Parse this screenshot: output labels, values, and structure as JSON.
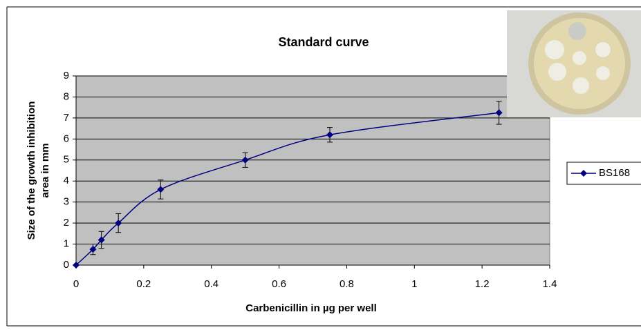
{
  "chart_data": {
    "type": "line",
    "title": "Standard curve",
    "xlabel": "Carbenicillin in µg per well",
    "ylabel": [
      "Size of the growth inhibition",
      "area in mm"
    ],
    "x": [
      0,
      0.05,
      0.075,
      0.125,
      0.25,
      0.5,
      0.75,
      1.25
    ],
    "series": [
      {
        "name": "BS168",
        "color": "#000080",
        "values": [
          0,
          0.75,
          1.2,
          2.0,
          3.6,
          5.0,
          6.2,
          7.25
        ],
        "errors": [
          0,
          0.25,
          0.4,
          0.45,
          0.45,
          0.35,
          0.35,
          0.55
        ]
      }
    ],
    "xlim": [
      0,
      1.4
    ],
    "xticks": [
      0,
      0.2,
      0.4,
      0.6,
      0.8,
      1,
      1.2,
      1.4
    ],
    "ylim": [
      0,
      9
    ],
    "yticks": [
      0,
      1,
      2,
      3,
      4,
      5,
      6,
      7,
      8,
      9
    ],
    "grid": true,
    "smooth": true,
    "legend": "right",
    "plot_background": "#c0c0c0"
  }
}
